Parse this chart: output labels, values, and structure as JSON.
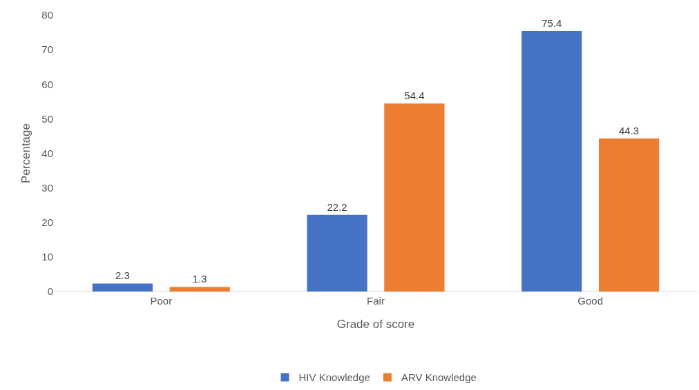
{
  "chart_data": {
    "type": "bar",
    "xlabel": "Grade of score",
    "ylabel": "Percentage",
    "categories": [
      "Poor",
      "Fair",
      "Good"
    ],
    "series": [
      {
        "name": "HIV Knowledge",
        "color": "#4472c4",
        "values": [
          2.3,
          22.2,
          75.4
        ]
      },
      {
        "name": "ARV Knowledge",
        "color": "#ed7d31",
        "values": [
          1.3,
          54.4,
          44.3
        ]
      }
    ],
    "ylim": [
      0,
      80
    ],
    "yticks": [
      0,
      10,
      20,
      30,
      40,
      50,
      60,
      70,
      80
    ],
    "grid": false,
    "data_labels": true,
    "legend": "bottom"
  }
}
